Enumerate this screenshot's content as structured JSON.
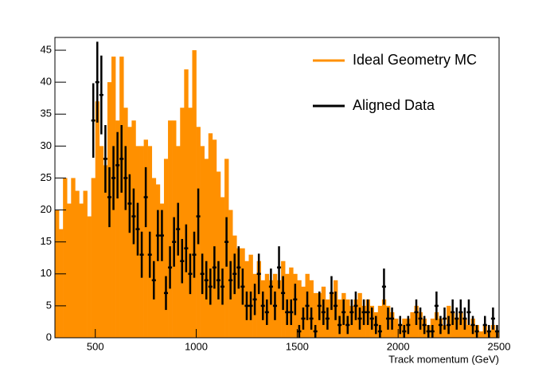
{
  "chart_data": {
    "type": "histogram",
    "xlabel": "Track momentum (GeV)",
    "bins": [
      300,
      320,
      340,
      360,
      380,
      400,
      420,
      440,
      460,
      480,
      500,
      520,
      540,
      560,
      580,
      600,
      620,
      640,
      660,
      680,
      700,
      720,
      740,
      760,
      780,
      800,
      820,
      840,
      860,
      880,
      900,
      920,
      940,
      960,
      980,
      1000,
      1020,
      1040,
      1060,
      1080,
      1100,
      1120,
      1140,
      1160,
      1180,
      1200,
      1220,
      1240,
      1260,
      1280,
      1300,
      1320,
      1340,
      1360,
      1380,
      1400,
      1420,
      1440,
      1460,
      1480,
      1500,
      1520,
      1540,
      1560,
      1580,
      1600,
      1620,
      1640,
      1660,
      1680,
      1700,
      1720,
      1740,
      1760,
      1780,
      1800,
      1820,
      1840,
      1860,
      1880,
      1900,
      1920,
      1940,
      1960,
      1980,
      2000,
      2020,
      2040,
      2060,
      2080,
      2100,
      2120,
      2140,
      2160,
      2180,
      2200,
      2220,
      2240,
      2260,
      2280,
      2300,
      2320,
      2340,
      2360,
      2380,
      2400,
      2420,
      2440,
      2460,
      2480,
      2500
    ],
    "series": [
      {
        "name": "Ideal Geometry MC",
        "color": "#ff9000",
        "values": [
          20,
          17,
          25,
          21,
          25,
          23,
          21,
          23,
          19,
          25,
          37,
          30,
          27,
          40,
          44,
          34,
          44,
          36,
          33,
          34,
          30,
          30,
          31,
          30,
          25,
          24,
          21,
          28,
          34,
          34,
          30,
          36,
          42,
          36,
          45,
          33,
          30,
          28,
          32,
          31,
          26,
          22,
          28,
          20,
          16,
          14,
          14,
          12,
          13,
          10,
          12,
          9,
          10,
          9,
          10,
          9,
          12,
          10,
          11,
          10,
          9,
          8,
          10,
          9,
          7,
          7,
          8,
          6,
          7,
          9,
          6,
          7,
          6,
          5,
          6,
          7,
          5,
          6,
          5,
          4,
          5,
          6,
          5,
          4,
          3,
          2,
          3,
          3,
          4,
          5,
          4,
          3,
          2,
          3,
          4,
          3,
          2,
          5,
          4,
          3,
          4,
          3,
          2,
          3,
          2,
          1,
          2,
          1,
          2,
          1
        ]
      },
      {
        "name": "Aligned Data",
        "color": "#000000",
        "values": [
          null,
          null,
          null,
          null,
          null,
          null,
          null,
          null,
          null,
          34,
          40,
          38,
          28,
          22,
          25,
          27,
          28,
          25,
          21,
          19,
          17,
          13,
          22,
          13,
          9,
          16,
          16,
          7,
          11,
          15,
          17,
          12,
          14,
          10,
          13,
          19,
          10,
          9,
          8,
          11,
          9,
          8,
          15,
          9,
          10,
          11,
          8,
          5,
          5,
          6,
          10,
          5,
          4,
          8,
          5,
          11,
          7,
          4,
          4,
          6,
          1,
          3,
          5,
          3,
          1,
          5,
          4,
          3,
          7,
          5,
          2,
          4,
          2,
          4,
          5,
          3,
          4,
          4,
          3,
          2,
          1,
          8,
          3,
          3,
          null,
          2,
          1,
          2,
          null,
          4,
          3,
          2,
          1,
          1,
          5,
          2,
          3,
          2,
          4,
          3,
          4,
          3,
          4,
          2,
          1,
          null,
          2,
          1,
          3,
          1
        ]
      }
    ],
    "xlim": [
      300,
      2500
    ],
    "xticks": [
      500,
      1000,
      1500,
      2000,
      2500
    ],
    "ylim": [
      0,
      47
    ],
    "yticks": [
      0,
      5,
      10,
      15,
      20,
      25,
      30,
      35,
      40,
      45
    ],
    "legend": "top-right"
  }
}
